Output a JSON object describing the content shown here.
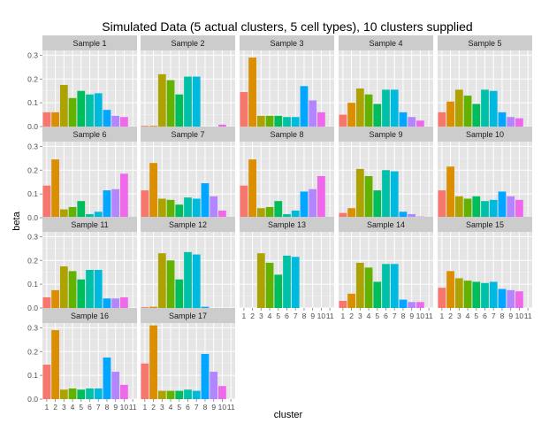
{
  "chart_data": {
    "type": "bar",
    "title": "Simulated Data (5 actual clusters, 5 cell types), 10 clusters supplied",
    "xlabel": "cluster",
    "ylabel": "beta",
    "ylim": [
      0,
      0.32
    ],
    "y_ticks": [
      "0.0",
      "0.1",
      "0.2",
      "0.3"
    ],
    "y_tick_values": [
      0,
      0.1,
      0.2,
      0.3
    ],
    "categories": [
      "1",
      "2",
      "3",
      "4",
      "5",
      "6",
      "7",
      "8",
      "9",
      "10",
      "11"
    ],
    "grid": true,
    "legend": "none",
    "colors": [
      "#F8766D",
      "#DB8E00",
      "#AEA200",
      "#64B200",
      "#00BD5C",
      "#00C1A7",
      "#00BADE",
      "#00A6FF",
      "#B385FF",
      "#EF67EB",
      "#FF63B6"
    ],
    "panels": [
      {
        "name": "Sample 1",
        "values": [
          0.06,
          0.06,
          0.175,
          0.12,
          0.15,
          0.135,
          0.14,
          0.07,
          0.045,
          0.04,
          0
        ]
      },
      {
        "name": "Sample 2",
        "values": [
          0.003,
          0.003,
          0.22,
          0.195,
          0.135,
          0.21,
          0.21,
          0,
          0,
          0.008,
          0
        ]
      },
      {
        "name": "Sample 3",
        "values": [
          0.145,
          0.29,
          0.045,
          0.045,
          0.045,
          0.04,
          0.04,
          0.17,
          0.11,
          0.06,
          0
        ]
      },
      {
        "name": "Sample 4",
        "values": [
          0.05,
          0.1,
          0.16,
          0.135,
          0.095,
          0.155,
          0.155,
          0.06,
          0.04,
          0.025,
          0
        ]
      },
      {
        "name": "Sample 5",
        "values": [
          0.06,
          0.105,
          0.155,
          0.13,
          0.095,
          0.155,
          0.15,
          0.06,
          0.04,
          0.035,
          0
        ]
      },
      {
        "name": "Sample 6",
        "values": [
          0.135,
          0.245,
          0.035,
          0.045,
          0.07,
          0.015,
          0.025,
          0.115,
          0.12,
          0.185,
          0
        ]
      },
      {
        "name": "Sample 7",
        "values": [
          0.115,
          0.23,
          0.08,
          0.075,
          0.055,
          0.085,
          0.08,
          0.145,
          0.09,
          0.03,
          0
        ]
      },
      {
        "name": "Sample 8",
        "values": [
          0.135,
          0.245,
          0.04,
          0.045,
          0.07,
          0.015,
          0.03,
          0.11,
          0.12,
          0.175,
          0
        ]
      },
      {
        "name": "Sample 9",
        "values": [
          0.02,
          0.04,
          0.205,
          0.175,
          0.115,
          0.2,
          0.195,
          0.025,
          0.015,
          0.005,
          0
        ]
      },
      {
        "name": "Sample 10",
        "values": [
          0.115,
          0.215,
          0.09,
          0.08,
          0.09,
          0.07,
          0.075,
          0.11,
          0.09,
          0.075,
          0
        ]
      },
      {
        "name": "Sample 11",
        "values": [
          0.045,
          0.075,
          0.175,
          0.155,
          0.12,
          0.16,
          0.16,
          0.04,
          0.04,
          0.045,
          0
        ]
      },
      {
        "name": "Sample 12",
        "values": [
          0.003,
          0.005,
          0.23,
          0.2,
          0.12,
          0.235,
          0.225,
          0.005,
          0,
          0,
          0
        ]
      },
      {
        "name": "Sample 13",
        "values": [
          0,
          0,
          0.23,
          0.19,
          0.14,
          0.22,
          0.215,
          0,
          0,
          0,
          0
        ]
      },
      {
        "name": "Sample 14",
        "values": [
          0.03,
          0.06,
          0.19,
          0.17,
          0.11,
          0.185,
          0.185,
          0.035,
          0.025,
          0.025,
          0
        ]
      },
      {
        "name": "Sample 15",
        "values": [
          0.085,
          0.155,
          0.125,
          0.115,
          0.11,
          0.105,
          0.11,
          0.08,
          0.075,
          0.07,
          0
        ]
      },
      {
        "name": "Sample 16",
        "values": [
          0.145,
          0.29,
          0.04,
          0.045,
          0.04,
          0.045,
          0.045,
          0.175,
          0.115,
          0.06,
          0
        ]
      },
      {
        "name": "Sample 17",
        "values": [
          0.15,
          0.31,
          0.035,
          0.035,
          0.035,
          0.04,
          0.035,
          0.19,
          0.115,
          0.055,
          0
        ]
      }
    ]
  }
}
